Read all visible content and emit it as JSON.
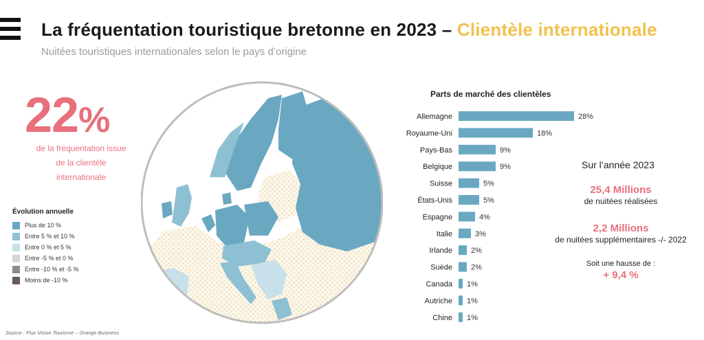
{
  "header": {
    "title_main": "La fréquentation touristique bretonne en 2023",
    "title_sep": "–",
    "title_accent": "Clientèle internationale",
    "subtitle": "Nuitées touristiques internationales selon le pays d’origine"
  },
  "highlight": {
    "value": "22",
    "unit": "%",
    "description_lines": [
      "de la fréquentation issue",
      "de la clientèle",
      "internationale"
    ]
  },
  "legend": {
    "title": "Évolution annuelle",
    "items": [
      {
        "label": "Plus de 10 %",
        "color": "#6aa8c2"
      },
      {
        "label": "Entre 5 % et 10 %",
        "color": "#8ec0d4"
      },
      {
        "label": "Entre 0 % et 5 %",
        "color": "#c7e0ea"
      },
      {
        "label": "Entre -5 % et 0 %",
        "color": "#d4d4d4"
      },
      {
        "label": "Entre -10 % et -5 %",
        "color": "#8c8c8c"
      },
      {
        "label": "Moins de -10 %",
        "color": "#6b5a55"
      }
    ]
  },
  "source": "Source : Flux Vision Tourisme – Orange Business",
  "chart_data": {
    "type": "bar",
    "orientation": "horizontal",
    "title": "Parts de marché des clientèles",
    "categories": [
      "Allemagne",
      "Royaume-Uni",
      "Pays-Bas",
      "Belgique",
      "Suisse",
      "États-Unis",
      "Espagne",
      "Italie",
      "Irlande",
      "Suède",
      "Canada",
      "Autriche",
      "Chine"
    ],
    "values": [
      28,
      18,
      9,
      9,
      5,
      5,
      4,
      3,
      2,
      2,
      1,
      1,
      1
    ],
    "value_labels": [
      "28%",
      "18%",
      "9%",
      "9%",
      "5%",
      "5%",
      "4%",
      "3%",
      "2%",
      "2%",
      "1%",
      "1%",
      "1%"
    ],
    "bar_color": "#6aa8c2",
    "xlim": [
      0,
      30
    ],
    "grid": false
  },
  "summary": {
    "year_label": "Sur l’année 2023",
    "kpi1_value": "25,4 Millions",
    "kpi1_desc": "de nuitées réalisées",
    "kpi2_value": "2,2 Millions",
    "kpi2_desc": "de nuitées supplémentaires -/- 2022",
    "kpi3_desc": "Soit une hausse de :",
    "kpi3_value": "+ 9,4 %"
  },
  "map_colors": {
    "ocean": "#ffffff",
    "circle_border": "#bdbdbd",
    "high": "#6aa8c2",
    "mid": "#8ec0d4",
    "low": "#c7e0ea",
    "neutral": "#f3e7c9"
  }
}
